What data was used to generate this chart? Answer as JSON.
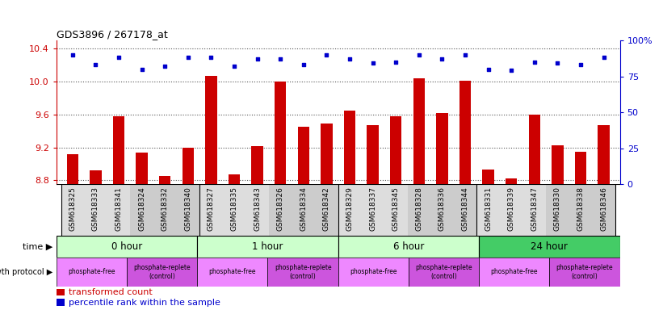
{
  "title": "GDS3896 / 267178_at",
  "samples": [
    "GSM618325",
    "GSM618333",
    "GSM618341",
    "GSM618324",
    "GSM618332",
    "GSM618340",
    "GSM618327",
    "GSM618335",
    "GSM618343",
    "GSM618326",
    "GSM618334",
    "GSM618342",
    "GSM618329",
    "GSM618337",
    "GSM618345",
    "GSM618328",
    "GSM618336",
    "GSM618344",
    "GSM618331",
    "GSM618339",
    "GSM618347",
    "GSM618330",
    "GSM618338",
    "GSM618346"
  ],
  "transformed_count": [
    9.12,
    8.92,
    9.58,
    9.14,
    8.85,
    9.2,
    10.07,
    8.87,
    9.22,
    10.0,
    9.45,
    9.49,
    9.65,
    9.47,
    9.58,
    10.04,
    9.62,
    10.01,
    8.93,
    8.82,
    9.6,
    9.23,
    9.15,
    9.47
  ],
  "percentile_rank": [
    90,
    83,
    88,
    80,
    82,
    88,
    88,
    82,
    87,
    87,
    83,
    90,
    87,
    84,
    85,
    90,
    87,
    90,
    80,
    79,
    85,
    84,
    83,
    88
  ],
  "ylim_left": [
    8.75,
    10.5
  ],
  "ylim_right": [
    0,
    100
  ],
  "yticks_left": [
    8.8,
    9.2,
    9.6,
    10.0,
    10.4
  ],
  "yticks_right": [
    0,
    25,
    50,
    75,
    100
  ],
  "bar_color": "#cc0000",
  "dot_color": "#0000cc",
  "grid_color": "#555555",
  "time_groups": [
    {
      "label": "0 hour",
      "start": 0,
      "end": 6,
      "color": "#ccffcc"
    },
    {
      "label": "1 hour",
      "start": 6,
      "end": 12,
      "color": "#ccffcc"
    },
    {
      "label": "6 hour",
      "start": 12,
      "end": 18,
      "color": "#ccffcc"
    },
    {
      "label": "24 hour",
      "start": 18,
      "end": 24,
      "color": "#44cc66"
    }
  ],
  "prot_groups": [
    {
      "label": "phosphate-free",
      "start": 0,
      "end": 3,
      "color": "#ee88ff"
    },
    {
      "label": "phosphate-replete\n(control)",
      "start": 3,
      "end": 6,
      "color": "#cc55dd"
    },
    {
      "label": "phosphate-free",
      "start": 6,
      "end": 9,
      "color": "#ee88ff"
    },
    {
      "label": "phosphate-replete\n(control)",
      "start": 9,
      "end": 12,
      "color": "#cc55dd"
    },
    {
      "label": "phosphate-free",
      "start": 12,
      "end": 15,
      "color": "#ee88ff"
    },
    {
      "label": "phosphate-replete\n(control)",
      "start": 15,
      "end": 18,
      "color": "#cc55dd"
    },
    {
      "label": "phosphate-free",
      "start": 18,
      "end": 21,
      "color": "#ee88ff"
    },
    {
      "label": "phosphate-replete\n(control)",
      "start": 21,
      "end": 24,
      "color": "#cc55dd"
    }
  ]
}
